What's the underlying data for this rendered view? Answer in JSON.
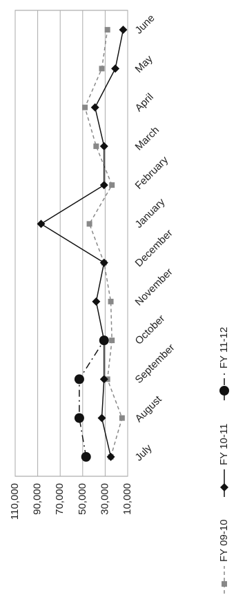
{
  "chart_data": {
    "type": "line",
    "categories": [
      "July",
      "August",
      "September",
      "October",
      "November",
      "December",
      "January",
      "February",
      "March",
      "April",
      "May",
      "June"
    ],
    "series": [
      {
        "name": "FY 09-10",
        "color": "#888888",
        "values": [
          25000,
          15000,
          28000,
          24000,
          25000,
          31000,
          44000,
          24000,
          38000,
          48000,
          33000,
          28000
        ]
      },
      {
        "name": "FY 10-11",
        "color": "#111111",
        "values": [
          25000,
          33000,
          31000,
          31000,
          38000,
          31000,
          87000,
          31000,
          31000,
          39000,
          21000,
          14000
        ]
      },
      {
        "name": "FY 11-12",
        "color": "#111111",
        "values": [
          47000,
          53000,
          53000,
          31000,
          null,
          null,
          null,
          null,
          null,
          null,
          null,
          null
        ]
      }
    ],
    "ylim": [
      10000,
      110000
    ],
    "yticks": [
      {
        "value": 10000,
        "label": "10,000"
      },
      {
        "value": 30000,
        "label": "30,000"
      },
      {
        "value": 50000,
        "label": "50,000"
      },
      {
        "value": 70000,
        "label": "70,000"
      },
      {
        "value": 90000,
        "label": "90,000"
      },
      {
        "value": 110000,
        "label": "110,000"
      }
    ],
    "grid": true
  }
}
